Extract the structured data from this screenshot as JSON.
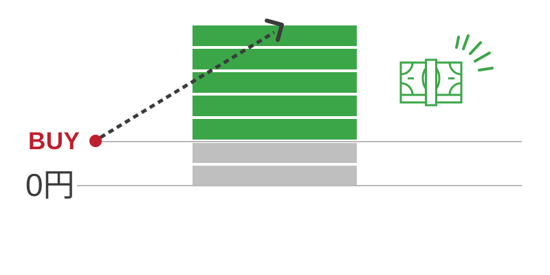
{
  "labels": {
    "buy": "BUY",
    "zero_price": "0円"
  },
  "stack": {
    "segments": [
      "green",
      "green",
      "green",
      "green",
      "green",
      "gray",
      "gray"
    ],
    "green_count": 5,
    "gray_count": 2
  },
  "annotations": {
    "arrow_direction": "up-right",
    "buy_marker": "red-dot-on-buy-line"
  },
  "colors": {
    "bar_green": "#3BA648",
    "bar_gray": "#BFBFBF",
    "accent_red": "#BE1E2D",
    "line_gray": "#B8B8B8",
    "arrow_dark": "#3B3B3B",
    "text_dark": "#3C3C3C",
    "background": "#FFFFFF"
  },
  "icons": [
    {
      "name": "buy-point-marker",
      "glyph": "filled-circle"
    },
    {
      "name": "rising-dashed-arrow-icon",
      "glyph": "dashed-line-with-chevron-arrowhead"
    },
    {
      "name": "money-stack-icon",
      "glyph": "banded-banknote-stack-with-sparkle-burst"
    }
  ]
}
